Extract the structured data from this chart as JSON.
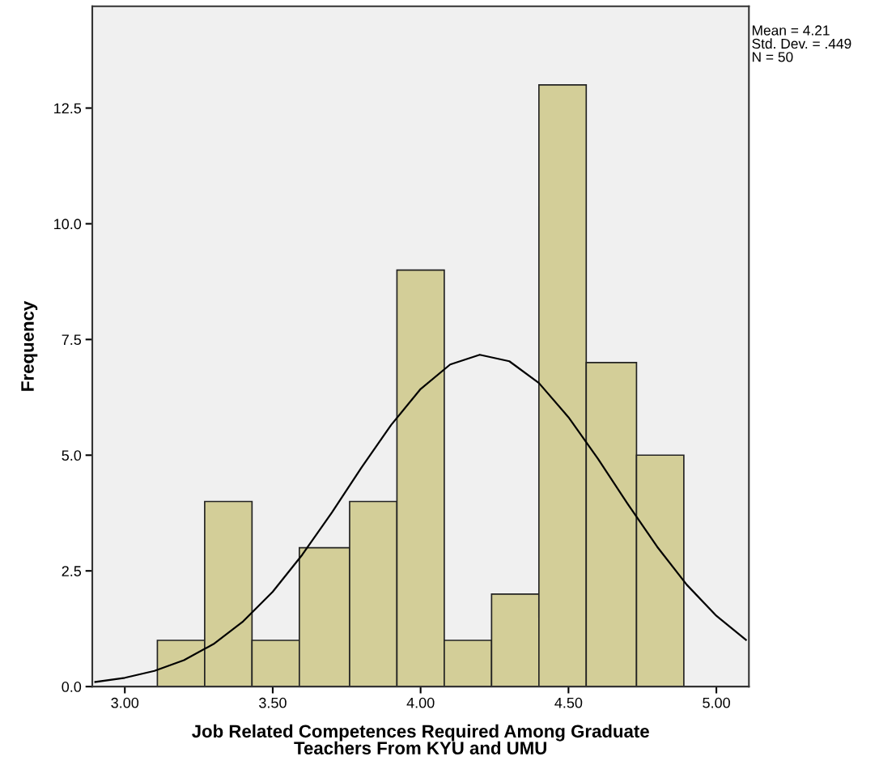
{
  "chart_data": {
    "type": "histogram",
    "xlabel": "Job Related Competences Required Among Graduate\nTeachers From KYU and UMU",
    "ylabel": "Frequency",
    "bins": [
      3.11,
      3.27,
      3.43,
      3.59,
      3.76,
      3.92,
      4.08,
      4.24,
      4.4,
      4.56,
      4.73,
      4.89
    ],
    "values": [
      1,
      4,
      1,
      3,
      4,
      9,
      1,
      2,
      13,
      7,
      5
    ],
    "color": "#d3ce98",
    "series": [
      {
        "type": "line",
        "color": "#000000",
        "x": [
          2.9,
          3.0,
          3.1,
          3.2,
          3.3,
          3.4,
          3.5,
          3.6,
          3.7,
          3.8,
          3.9,
          4.0,
          4.1,
          4.2,
          4.3,
          4.4,
          4.5,
          4.6,
          4.7,
          4.8,
          4.9,
          5.0,
          5.1
        ],
        "values": [
          0.1,
          0.19,
          0.34,
          0.57,
          0.92,
          1.41,
          2.05,
          2.85,
          3.76,
          4.73,
          5.65,
          6.43,
          6.96,
          7.17,
          7.03,
          6.56,
          5.82,
          4.92,
          3.95,
          3.02,
          2.2,
          1.53,
          1.01
        ]
      }
    ],
    "xlim": [
      2.89,
      5.11
    ],
    "xticks": [
      {
        "value": 3.0,
        "label": "3.00"
      },
      {
        "value": 3.5,
        "label": "3.50"
      },
      {
        "value": 4.0,
        "label": "4.00"
      },
      {
        "value": 4.5,
        "label": "4.50"
      },
      {
        "value": 5.0,
        "label": "5.00"
      }
    ],
    "ylim": [
      0,
      14.7
    ],
    "yticks": [
      {
        "value": 0,
        "label": "0.0"
      },
      {
        "value": 2.5,
        "label": "2.5"
      },
      {
        "value": 5,
        "label": "5.0"
      },
      {
        "value": 7.5,
        "label": "7.5"
      },
      {
        "value": 10,
        "label": "10.0"
      },
      {
        "value": 12.5,
        "label": "12.5"
      }
    ],
    "annotations": [
      "Mean = 4.21",
      "Std. Dev. = .449",
      "N = 50"
    ]
  }
}
